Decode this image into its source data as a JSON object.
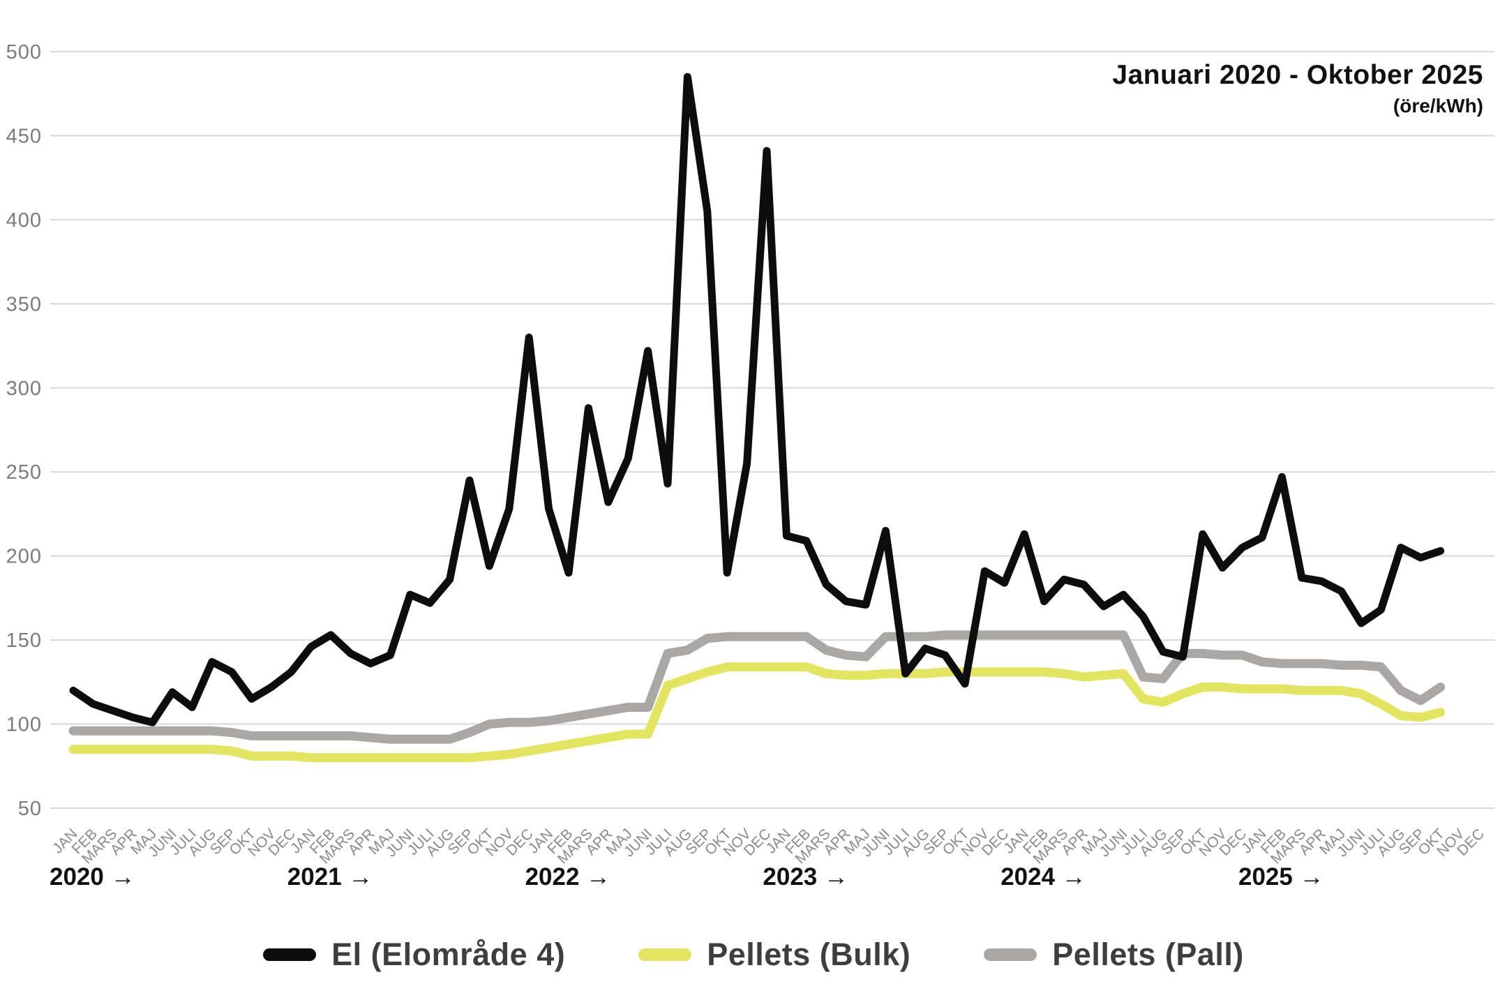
{
  "header": {
    "title": "Januari 2020 - Oktober 2025",
    "subtitle": "(öre/kWh)"
  },
  "legend": [
    {
      "label": "El (Elområde 4)",
      "color": "#0d0d0d"
    },
    {
      "label": "Pellets (Bulk)",
      "color": "#e3e45f"
    },
    {
      "label": "Pellets (Pall)",
      "color": "#aaa7a4"
    }
  ],
  "chart_data": {
    "type": "line",
    "title": "Januari 2020 - Oktober 2025",
    "unit": "öre/kWh",
    "grid": "horizontal",
    "legend_position": "bottom-center",
    "x_axis": {
      "month_cycle": [
        "JAN",
        "FEB",
        "MARS",
        "APR",
        "MAJ",
        "JUNI",
        "JULI",
        "AUG",
        "SEP",
        "OKT",
        "NOV",
        "DEC"
      ],
      "n_months": 72,
      "years": [
        {
          "label": "2020 →",
          "start_month": 0
        },
        {
          "label": "2021 →",
          "start_month": 12
        },
        {
          "label": "2022 →",
          "start_month": 24
        },
        {
          "label": "2023 →",
          "start_month": 36
        },
        {
          "label": "2024 →",
          "start_month": 48
        },
        {
          "label": "2025 →",
          "start_month": 60
        }
      ]
    },
    "y_axis": {
      "min": 50,
      "max": 500,
      "step": 50,
      "ticks": [
        500,
        450,
        400,
        350,
        300,
        250,
        200,
        150,
        100,
        50
      ]
    },
    "series": [
      {
        "name": "El (Elområde 4)",
        "color": "#0d0d0d",
        "stroke_width": 11,
        "values": [
          120,
          112,
          108,
          104,
          101,
          119,
          110,
          137,
          131,
          115,
          122,
          131,
          146,
          153,
          142,
          136,
          141,
          177,
          172,
          186,
          245,
          194,
          228,
          330,
          228,
          190,
          288,
          232,
          258,
          322,
          243,
          485,
          405,
          190,
          255,
          441,
          212,
          209,
          183,
          173,
          171,
          215,
          130,
          145,
          141,
          124,
          191,
          184,
          213,
          173,
          186,
          183,
          170,
          177,
          164,
          143,
          140,
          213,
          193,
          205,
          211,
          247,
          187,
          185,
          179,
          160,
          168,
          205,
          199,
          203
        ]
      },
      {
        "name": "Pellets (Bulk)",
        "color": "#e3e45f",
        "stroke_width": 13,
        "values": [
          85,
          85,
          85,
          85,
          85,
          85,
          85,
          85,
          84,
          81,
          81,
          81,
          80,
          80,
          80,
          80,
          80,
          80,
          80,
          80,
          80,
          81,
          82,
          84,
          86,
          88,
          90,
          92,
          94,
          94,
          123,
          127,
          131,
          134,
          134,
          134,
          134,
          134,
          130,
          129,
          129,
          130,
          130,
          130,
          131,
          131,
          131,
          131,
          131,
          131,
          130,
          128,
          129,
          130,
          115,
          113,
          118,
          122,
          122,
          121,
          121,
          121,
          120,
          120,
          120,
          118,
          112,
          105,
          104,
          107
        ]
      },
      {
        "name": "Pellets (Pall)",
        "color": "#aaa7a4",
        "stroke_width": 13,
        "values": [
          96,
          96,
          96,
          96,
          96,
          96,
          96,
          96,
          95,
          93,
          93,
          93,
          93,
          93,
          93,
          92,
          91,
          91,
          91,
          91,
          95,
          100,
          101,
          101,
          102,
          104,
          106,
          108,
          110,
          110,
          142,
          144,
          151,
          152,
          152,
          152,
          152,
          152,
          144,
          141,
          140,
          152,
          152,
          152,
          153,
          153,
          153,
          153,
          153,
          153,
          153,
          153,
          153,
          153,
          128,
          127,
          142,
          142,
          141,
          141,
          137,
          136,
          136,
          136,
          135,
          135,
          134,
          120,
          114,
          122
        ]
      }
    ]
  }
}
